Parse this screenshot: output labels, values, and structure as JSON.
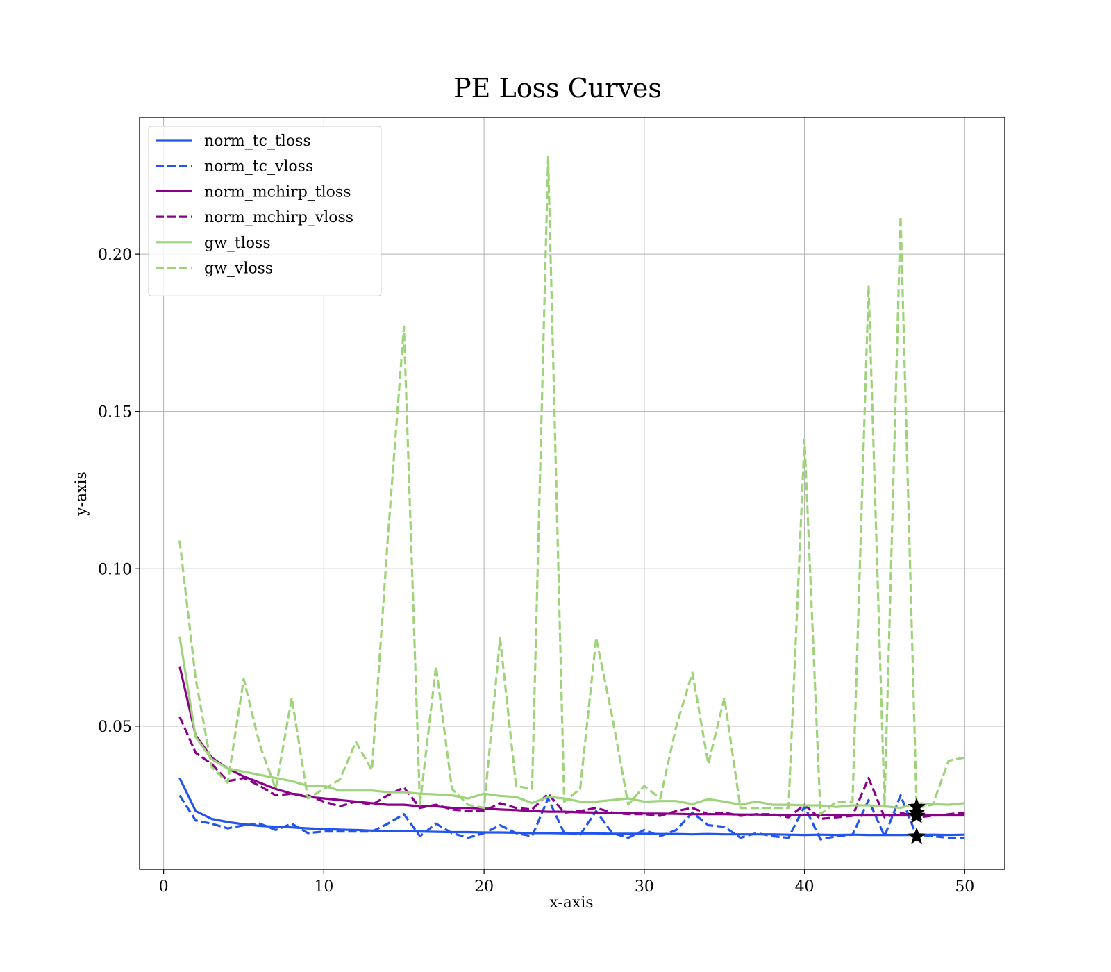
{
  "chart_data": {
    "type": "line",
    "title": "PE Loss Curves",
    "xlabel": "x-axis",
    "ylabel": "y-axis",
    "xlim": [
      -1.5,
      52.5
    ],
    "ylim": [
      0.0045,
      0.2435
    ],
    "xticks": [
      0,
      10,
      20,
      30,
      40,
      50
    ],
    "yticks": [
      0.05,
      0.1,
      0.15,
      0.2
    ],
    "xtick_labels": [
      "0",
      "10",
      "20",
      "30",
      "40",
      "50"
    ],
    "ytick_labels": [
      "0.05",
      "0.10",
      "0.15",
      "0.20"
    ],
    "grid": true,
    "legend_position": "top-left",
    "x": [
      1,
      2,
      3,
      4,
      5,
      6,
      7,
      8,
      9,
      10,
      11,
      12,
      13,
      14,
      15,
      16,
      17,
      18,
      19,
      20,
      21,
      22,
      23,
      24,
      25,
      26,
      27,
      28,
      29,
      30,
      31,
      32,
      33,
      34,
      35,
      36,
      37,
      38,
      39,
      40,
      41,
      42,
      43,
      44,
      45,
      46,
      47,
      48,
      49,
      50
    ],
    "series": [
      {
        "name": "norm_tc_tloss",
        "color": "#2255ee",
        "dash": "solid",
        "values": [
          0.0335,
          0.023,
          0.0205,
          0.0195,
          0.0188,
          0.0183,
          0.018,
          0.0178,
          0.0175,
          0.0173,
          0.0171,
          0.017,
          0.0168,
          0.0167,
          0.0166,
          0.0165,
          0.0164,
          0.0163,
          0.0163,
          0.0162,
          0.0162,
          0.0161,
          0.016,
          0.016,
          0.0159,
          0.0159,
          0.0159,
          0.0158,
          0.0158,
          0.0158,
          0.0157,
          0.0157,
          0.0156,
          0.0157,
          0.0156,
          0.0156,
          0.0156,
          0.0156,
          0.0155,
          0.0154,
          0.0155,
          0.0154,
          0.0155,
          0.0154,
          0.0154,
          0.0154,
          0.0154,
          0.0155,
          0.0154,
          0.0155
        ]
      },
      {
        "name": "norm_tc_vloss",
        "color": "#2255ee",
        "dash": "dashed",
        "values": [
          0.028,
          0.02,
          0.019,
          0.0175,
          0.0185,
          0.019,
          0.017,
          0.019,
          0.016,
          0.0165,
          0.0165,
          0.0165,
          0.0165,
          0.019,
          0.022,
          0.015,
          0.019,
          0.016,
          0.0145,
          0.016,
          0.0185,
          0.016,
          0.015,
          0.027,
          0.016,
          0.0155,
          0.023,
          0.016,
          0.0145,
          0.017,
          0.015,
          0.017,
          0.0225,
          0.0185,
          0.018,
          0.0145,
          0.016,
          0.015,
          0.0145,
          0.0245,
          0.014,
          0.015,
          0.0155,
          0.0265,
          0.015,
          0.028,
          0.015,
          0.015,
          0.0145,
          0.0145
        ]
      },
      {
        "name": "norm_mchirp_tloss",
        "color": "#8b008b",
        "dash": "solid",
        "values": [
          0.069,
          0.047,
          0.04,
          0.0365,
          0.034,
          0.032,
          0.03,
          0.0285,
          0.0275,
          0.027,
          0.0265,
          0.026,
          0.0255,
          0.025,
          0.025,
          0.0245,
          0.0245,
          0.024,
          0.024,
          0.0238,
          0.0235,
          0.0233,
          0.023,
          0.0228,
          0.0228,
          0.0226,
          0.0225,
          0.0224,
          0.0224,
          0.0222,
          0.0222,
          0.0221,
          0.022,
          0.022,
          0.022,
          0.0219,
          0.0219,
          0.0218,
          0.0218,
          0.0218,
          0.0217,
          0.0216,
          0.0216,
          0.0216,
          0.0216,
          0.0216,
          0.0216,
          0.0216,
          0.0216,
          0.0216
        ]
      },
      {
        "name": "norm_mchirp_vloss",
        "color": "#8b008b",
        "dash": "dashed",
        "values": [
          0.053,
          0.0415,
          0.038,
          0.0325,
          0.0335,
          0.031,
          0.028,
          0.0285,
          0.028,
          0.026,
          0.0245,
          0.026,
          0.025,
          0.028,
          0.0305,
          0.024,
          0.025,
          0.0235,
          0.023,
          0.023,
          0.0255,
          0.024,
          0.0235,
          0.0285,
          0.0225,
          0.023,
          0.024,
          0.0225,
          0.022,
          0.022,
          0.0215,
          0.023,
          0.024,
          0.022,
          0.0225,
          0.0215,
          0.022,
          0.022,
          0.021,
          0.025,
          0.0205,
          0.021,
          0.0215,
          0.0335,
          0.021,
          0.0225,
          0.021,
          0.0215,
          0.022,
          0.0225
        ]
      },
      {
        "name": "gw_tloss",
        "color": "#9ed479",
        "dash": "solid",
        "values": [
          0.0785,
          0.0465,
          0.0395,
          0.0365,
          0.0355,
          0.0345,
          0.0335,
          0.0325,
          0.031,
          0.031,
          0.0295,
          0.0295,
          0.0295,
          0.029,
          0.029,
          0.0285,
          0.0283,
          0.028,
          0.027,
          0.0285,
          0.0278,
          0.0275,
          0.0255,
          0.0275,
          0.027,
          0.026,
          0.026,
          0.0265,
          0.027,
          0.026,
          0.0262,
          0.0262,
          0.0252,
          0.0268,
          0.026,
          0.025,
          0.026,
          0.025,
          0.025,
          0.0248,
          0.0248,
          0.0243,
          0.0248,
          0.0248,
          0.0245,
          0.024,
          0.0255,
          0.0252,
          0.025,
          0.0255
        ]
      },
      {
        "name": "gw_vloss",
        "color": "#9ed479",
        "dash": "dashed",
        "values": [
          0.109,
          0.065,
          0.037,
          0.032,
          0.065,
          0.044,
          0.03,
          0.059,
          0.027,
          0.03,
          0.033,
          0.045,
          0.036,
          0.11,
          0.177,
          0.025,
          0.069,
          0.03,
          0.025,
          0.024,
          0.078,
          0.031,
          0.03,
          0.231,
          0.026,
          0.03,
          0.078,
          0.053,
          0.025,
          0.031,
          0.027,
          0.05,
          0.067,
          0.038,
          0.059,
          0.024,
          0.024,
          0.024,
          0.024,
          0.141,
          0.022,
          0.026,
          0.026,
          0.19,
          0.025,
          0.212,
          0.024,
          0.025,
          0.039,
          0.04
        ]
      }
    ],
    "best_markers": {
      "x": 47,
      "values": [
        0.0149,
        0.0243,
        0.0215,
        0.0225
      ]
    }
  }
}
